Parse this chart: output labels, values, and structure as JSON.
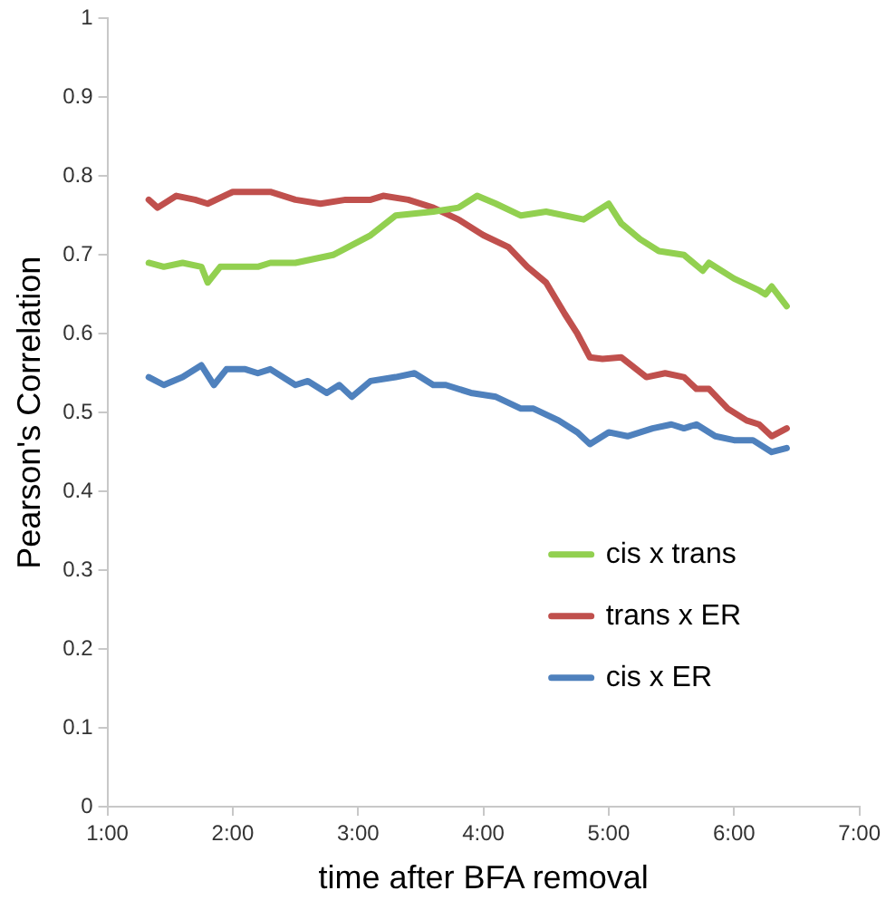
{
  "chart_data": {
    "type": "line",
    "xlabel": "time after BFA removal",
    "ylabel": "Pearson's Correlation",
    "xlim": [
      1,
      7
    ],
    "xticks": [
      {
        "value": 1,
        "label": "1:00"
      },
      {
        "value": 2,
        "label": "2:00"
      },
      {
        "value": 3,
        "label": "3:00"
      },
      {
        "value": 4,
        "label": "4:00"
      },
      {
        "value": 5,
        "label": "5:00"
      },
      {
        "value": 6,
        "label": "6:00"
      },
      {
        "value": 7,
        "label": "7:00"
      }
    ],
    "ylim": [
      0,
      1
    ],
    "yticks": [
      0,
      0.1,
      0.2,
      0.3,
      0.4,
      0.5,
      0.6,
      0.7,
      0.8,
      0.9,
      1
    ],
    "grid": false,
    "legend": "right",
    "marker": "none",
    "line_style": "solid",
    "series": [
      {
        "name": "cis x trans",
        "color": "#92d050",
        "x": [
          1.33,
          1.45,
          1.6,
          1.75,
          1.8,
          1.9,
          2.2,
          2.3,
          2.5,
          2.8,
          3.1,
          3.3,
          3.6,
          3.8,
          3.95,
          4.1,
          4.3,
          4.5,
          4.8,
          5.0,
          5.1,
          5.25,
          5.4,
          5.6,
          5.75,
          5.8,
          6.0,
          6.2,
          6.25,
          6.3,
          6.42
        ],
        "values": [
          0.69,
          0.685,
          0.69,
          0.685,
          0.665,
          0.685,
          0.685,
          0.69,
          0.69,
          0.7,
          0.725,
          0.75,
          0.755,
          0.76,
          0.775,
          0.765,
          0.75,
          0.755,
          0.745,
          0.765,
          0.74,
          0.72,
          0.705,
          0.7,
          0.68,
          0.69,
          0.67,
          0.655,
          0.65,
          0.66,
          0.635
        ]
      },
      {
        "name": "trans x ER",
        "color": "#c0504d",
        "x": [
          1.33,
          1.4,
          1.55,
          1.7,
          1.8,
          2.0,
          2.3,
          2.5,
          2.7,
          2.9,
          3.1,
          3.2,
          3.4,
          3.6,
          3.8,
          4.0,
          4.2,
          4.35,
          4.5,
          4.65,
          4.75,
          4.85,
          4.95,
          5.1,
          5.3,
          5.45,
          5.6,
          5.7,
          5.8,
          5.95,
          6.1,
          6.2,
          6.3,
          6.42
        ],
        "values": [
          0.77,
          0.76,
          0.775,
          0.77,
          0.765,
          0.78,
          0.78,
          0.77,
          0.765,
          0.77,
          0.77,
          0.775,
          0.77,
          0.76,
          0.745,
          0.725,
          0.71,
          0.685,
          0.665,
          0.625,
          0.6,
          0.57,
          0.568,
          0.57,
          0.545,
          0.55,
          0.545,
          0.53,
          0.53,
          0.505,
          0.49,
          0.485,
          0.47,
          0.48
        ]
      },
      {
        "name": "cis x ER",
        "color": "#4f81bd",
        "x": [
          1.33,
          1.45,
          1.6,
          1.75,
          1.85,
          1.95,
          2.1,
          2.2,
          2.3,
          2.5,
          2.6,
          2.75,
          2.85,
          2.95,
          3.1,
          3.3,
          3.45,
          3.6,
          3.7,
          3.9,
          4.1,
          4.3,
          4.4,
          4.6,
          4.75,
          4.85,
          5.0,
          5.15,
          5.35,
          5.5,
          5.6,
          5.7,
          5.85,
          6.0,
          6.15,
          6.3,
          6.42
        ],
        "values": [
          0.545,
          0.535,
          0.545,
          0.56,
          0.535,
          0.555,
          0.555,
          0.55,
          0.555,
          0.535,
          0.54,
          0.525,
          0.535,
          0.52,
          0.54,
          0.545,
          0.55,
          0.535,
          0.535,
          0.525,
          0.52,
          0.505,
          0.505,
          0.49,
          0.475,
          0.46,
          0.475,
          0.47,
          0.48,
          0.485,
          0.48,
          0.485,
          0.47,
          0.465,
          0.465,
          0.45,
          0.455
        ]
      }
    ]
  }
}
